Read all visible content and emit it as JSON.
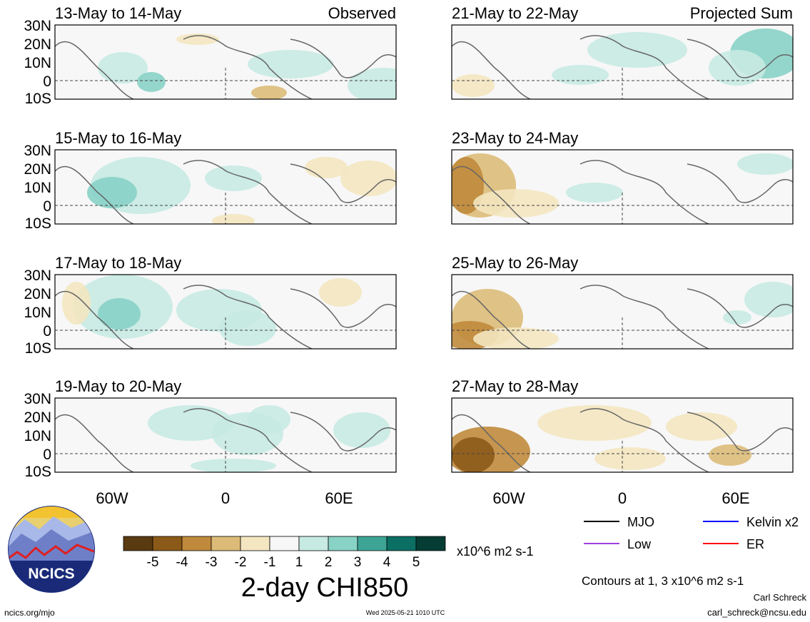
{
  "panels": [
    {
      "title": "13-May to 14-May",
      "tag": "Observed",
      "col": 0,
      "row": 0
    },
    {
      "title": "15-May to 16-May",
      "tag": "",
      "col": 0,
      "row": 1
    },
    {
      "title": "17-May to 18-May",
      "tag": "",
      "col": 0,
      "row": 2
    },
    {
      "title": "19-May to 20-May",
      "tag": "",
      "col": 0,
      "row": 3
    },
    {
      "title": "21-May to 22-May",
      "tag": "Projected Sum",
      "col": 1,
      "row": 0
    },
    {
      "title": "23-May to 24-May",
      "tag": "",
      "col": 1,
      "row": 1
    },
    {
      "title": "25-May to 26-May",
      "tag": "",
      "col": 1,
      "row": 2
    },
    {
      "title": "27-May to 28-May",
      "tag": "",
      "col": 1,
      "row": 3
    }
  ],
  "lat_labels": [
    "30N",
    "20N",
    "10N",
    "0",
    "10S"
  ],
  "lon_labels": [
    "60W",
    "0",
    "60E"
  ],
  "colorbar": {
    "ticks": [
      "-5",
      "-4",
      "-3",
      "-2",
      "-1",
      "1",
      "2",
      "3",
      "4",
      "5"
    ],
    "colors": [
      "#5a3a10",
      "#8c5a18",
      "#c08a3c",
      "#dcbb78",
      "#f3e6c0",
      "#f7f7f7",
      "#c7eae2",
      "#88d2c6",
      "#3ea596",
      "#0b6f63",
      "#053c34"
    ],
    "units": "x10^6 m2 s-1"
  },
  "title": "2-day CHI850",
  "legend": [
    {
      "label": "MJO",
      "color": "#000000"
    },
    {
      "label": "Kelvin x2",
      "color": "#0000ff"
    },
    {
      "label": "Low",
      "color": "#a040e0"
    },
    {
      "label": "ER",
      "color": "#ff0000"
    }
  ],
  "contours_note": "Contours at 1, 3 x10^6 m2 s-1",
  "author": "Carl Schreck",
  "email": "carl_schreck@ncsu.edu",
  "website": "ncics.org/mjo",
  "timestamp": "Wed 2025-05-21 1010 UTC",
  "logo_text": "NCICS"
}
